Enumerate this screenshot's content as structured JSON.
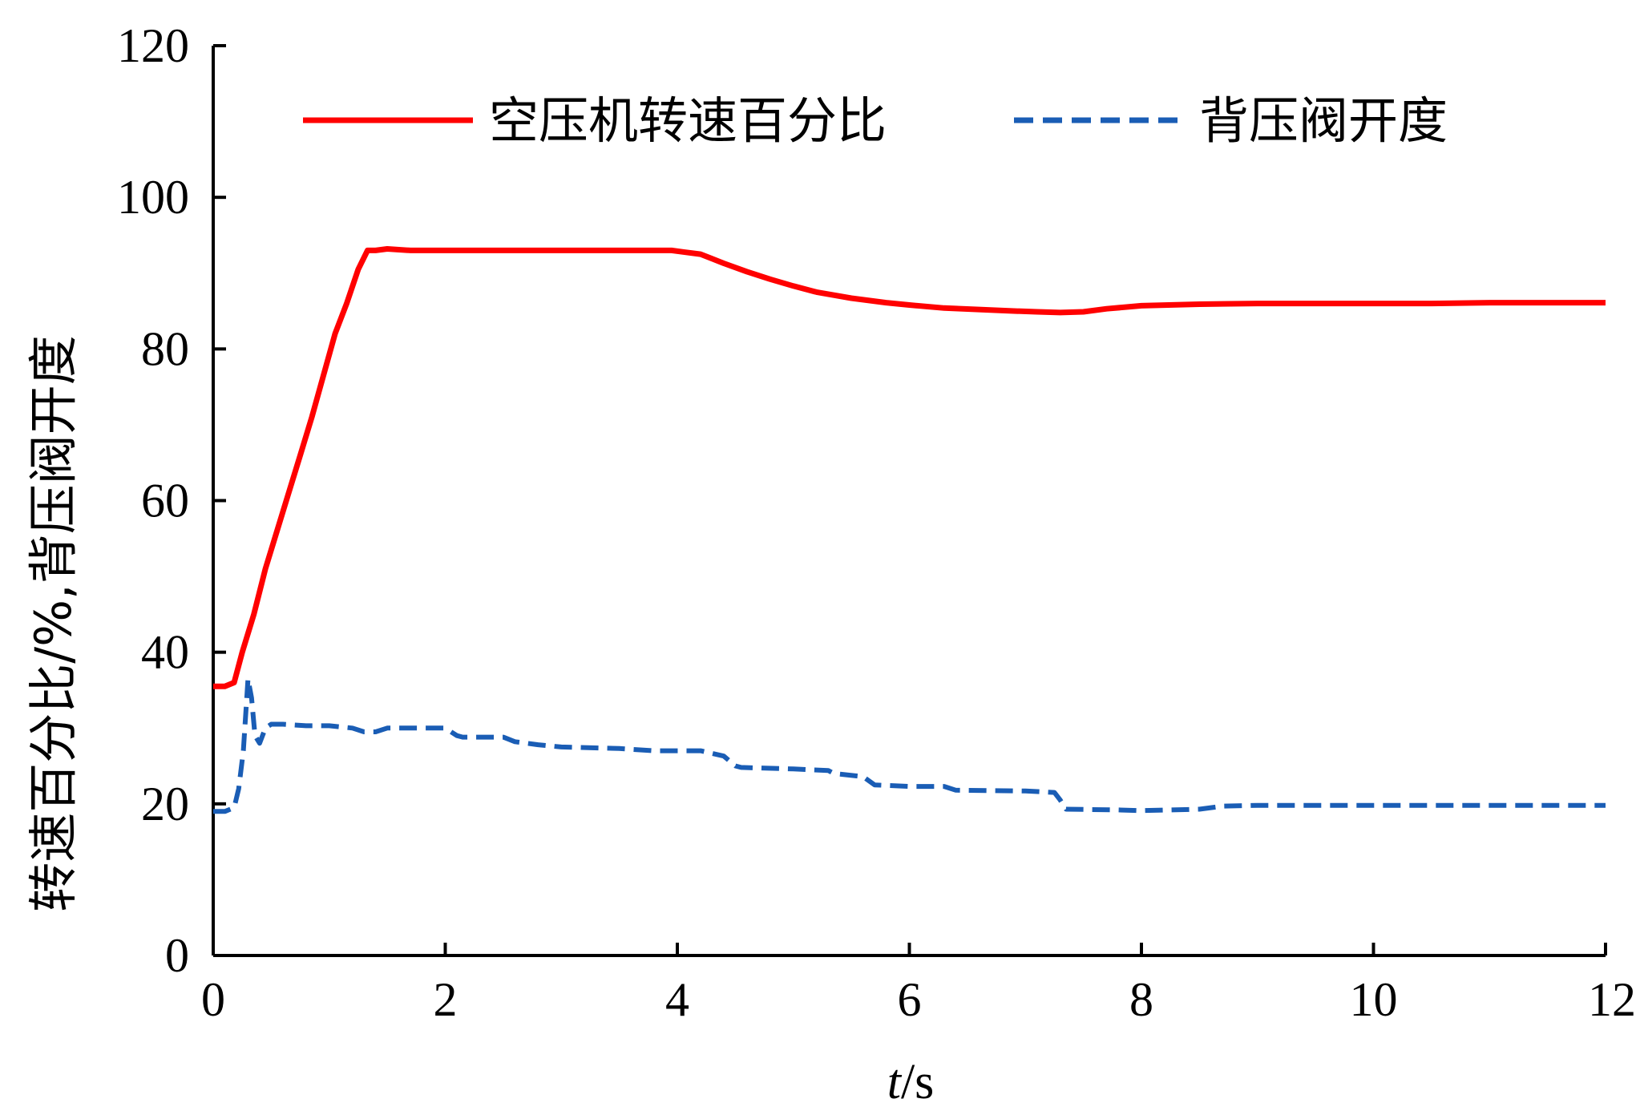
{
  "chart_data": {
    "type": "line",
    "title": "",
    "xlabel_var": "t",
    "xlabel_unit": "/s",
    "ylabel": "转速百分比/%,背压阀开度",
    "xlim": [
      0,
      12
    ],
    "ylim": [
      0,
      120
    ],
    "xticks": [
      "0",
      "2",
      "4",
      "6",
      "8",
      "10",
      "12"
    ],
    "yticks": [
      "0",
      "20",
      "40",
      "60",
      "80",
      "100",
      "120"
    ],
    "grid": false,
    "legend_position": "top",
    "series": [
      {
        "name": "空压机转速百分比",
        "color": "#ff0000",
        "style": "solid",
        "x": [
          0,
          0.1,
          0.18,
          0.25,
          0.35,
          0.45,
          0.55,
          0.65,
          0.75,
          0.85,
          0.95,
          1.05,
          1.15,
          1.25,
          1.33,
          1.4,
          1.5,
          1.7,
          2,
          2.5,
          3,
          3.5,
          3.8,
          3.95,
          4.05,
          4.2,
          4.4,
          4.6,
          4.8,
          5.0,
          5.2,
          5.5,
          5.8,
          6.0,
          6.3,
          6.6,
          6.9,
          7.1,
          7.3,
          7.5,
          7.7,
          8.0,
          8.5,
          9,
          9.5,
          10,
          10.5,
          11,
          11.5,
          12
        ],
        "y": [
          35.5,
          35.5,
          36,
          40,
          45,
          51,
          56,
          61,
          66,
          71,
          76.5,
          82,
          86,
          90.5,
          93,
          93,
          93.2,
          93,
          93,
          93,
          93,
          93,
          93,
          93,
          92.8,
          92.5,
          91.3,
          90.2,
          89.2,
          88.3,
          87.5,
          86.7,
          86.1,
          85.8,
          85.4,
          85.2,
          85,
          84.9,
          84.8,
          84.9,
          85.3,
          85.7,
          85.9,
          86,
          86,
          86,
          86,
          86.1,
          86.1,
          86.1
        ]
      },
      {
        "name": "背压阀开度",
        "color": "#1a5db5",
        "style": "dashed",
        "x": [
          0,
          0.1,
          0.18,
          0.22,
          0.26,
          0.3,
          0.33,
          0.36,
          0.4,
          0.45,
          0.5,
          0.6,
          0.8,
          1,
          1.2,
          1.3,
          1.4,
          1.5,
          2,
          2.1,
          2.15,
          2.5,
          2.6,
          2.8,
          3.0,
          3.5,
          3.8,
          4.0,
          4.2,
          4.4,
          4.5,
          4.55,
          5.0,
          5.3,
          5.35,
          5.6,
          5.7,
          6.0,
          6.3,
          6.4,
          7.0,
          7.25,
          7.3,
          7.35,
          7.8,
          8.0,
          8.5,
          8.7,
          9,
          10,
          11,
          12
        ],
        "y": [
          19,
          19,
          19.5,
          22,
          27,
          36.5,
          34,
          29,
          28,
          30,
          30.5,
          30.5,
          30.3,
          30.3,
          30,
          29.5,
          29.5,
          30,
          30,
          29,
          28.8,
          28.8,
          28.2,
          27.8,
          27.5,
          27.3,
          27,
          27,
          27,
          26.3,
          25,
          24.8,
          24.6,
          24.4,
          24,
          23.6,
          22.5,
          22.3,
          22.3,
          21.8,
          21.7,
          21.5,
          20.5,
          19.3,
          19.2,
          19.1,
          19.3,
          19.7,
          19.8,
          19.8,
          19.8,
          19.8
        ]
      }
    ]
  }
}
